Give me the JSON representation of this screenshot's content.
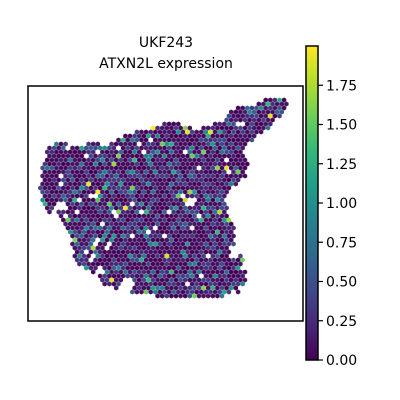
{
  "chart_data": {
    "type": "scatter",
    "title_line1": "UKF243",
    "title_line2": "ATXN2L expression",
    "xlabel": "",
    "ylabel": "",
    "grid": false,
    "axes_ticks_shown": false,
    "marker": "hexagon",
    "colormap": "viridis",
    "colorbar": {
      "min": 0.0,
      "max": 2.0,
      "ticks": [
        "0.00",
        "0.25",
        "0.50",
        "0.75",
        "1.00",
        "1.25",
        "1.50",
        "1.75"
      ],
      "tick_values": [
        0.0,
        0.25,
        0.5,
        0.75,
        1.0,
        1.25,
        1.5,
        1.75
      ],
      "placement": "right"
    },
    "value_distribution": {
      "dominant_range": [
        0.0,
        0.5
      ],
      "notable_high_values": [
        1.5,
        1.75,
        2.0
      ]
    }
  },
  "colors": {
    "viridis_stops": [
      "#440154",
      "#482878",
      "#3e4989",
      "#31688e",
      "#26828e",
      "#1f9e89",
      "#35b779",
      "#6ece58",
      "#b5de2b",
      "#fde725"
    ],
    "frame": "#000000",
    "background": "#ffffff"
  }
}
